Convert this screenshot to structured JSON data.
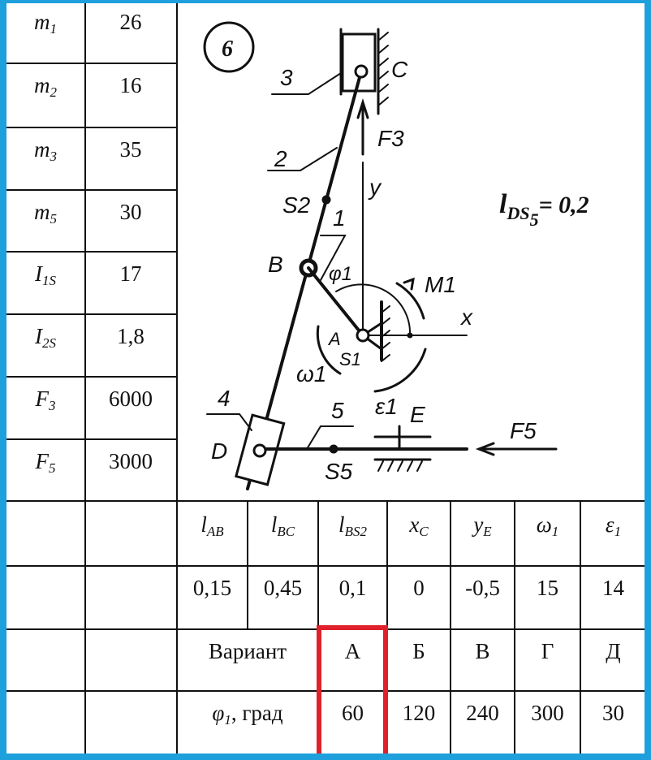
{
  "params_left": [
    {
      "sym": "m",
      "sub": "1",
      "value": "26"
    },
    {
      "sym": "m",
      "sub": "2",
      "value": "16"
    },
    {
      "sym": "m",
      "sub": "3",
      "value": "35"
    },
    {
      "sym": "m",
      "sub": "5",
      "value": "30"
    },
    {
      "sym": "I",
      "sub": "1S",
      "value": "17"
    },
    {
      "sym": "I",
      "sub": "2S",
      "value": "1,8"
    },
    {
      "sym": "F",
      "sub": "3",
      "value": "6000"
    },
    {
      "sym": "F",
      "sub": "5",
      "value": "3000"
    }
  ],
  "params_bottom": [
    {
      "sym": "l",
      "sub": "AB",
      "value": "0,15"
    },
    {
      "sym": "l",
      "sub": "BC",
      "value": "0,45"
    },
    {
      "sym": "l",
      "sub": "BS2",
      "value": "0,1"
    },
    {
      "sym": "x",
      "sub": "C",
      "value": "0"
    },
    {
      "sym": "y",
      "sub": "E",
      "value": "-0,5"
    },
    {
      "sym": "ω",
      "sub": "1",
      "value": "15"
    },
    {
      "sym": "ε",
      "sub": "1",
      "value": "14"
    }
  ],
  "variants": {
    "label": "Вариант",
    "angle_sym": "φ",
    "angle_sub": "1",
    "angle_unit": ", град",
    "items": [
      {
        "name": "А",
        "angle": "60"
      },
      {
        "name": "Б",
        "angle": "120"
      },
      {
        "name": "В",
        "angle": "240"
      },
      {
        "name": "Г",
        "angle": "300"
      },
      {
        "name": "Д",
        "angle": "30"
      }
    ],
    "selected": "А",
    "highlight_color": "#e0202a"
  },
  "diagram": {
    "scheme_number": "6",
    "labels": {
      "C": "C",
      "B": "B",
      "A": "A",
      "D": "D",
      "E": "E",
      "x": "x",
      "y": "y",
      "S1": "S1",
      "S2": "S2",
      "S5": "S5",
      "F3": "F3",
      "F5": "F5",
      "M1": "M1",
      "w1": "ω1",
      "e1": "ε1",
      "phi1": "φ1",
      "n1": "1",
      "n2": "2",
      "n3": "3",
      "n4": "4",
      "n5": "5"
    },
    "note_sym": "l",
    "note_sub": "DS",
    "note_subsub": "5",
    "note_value": "= 0,2"
  },
  "colors": {
    "frame": "#1ea0dc"
  }
}
